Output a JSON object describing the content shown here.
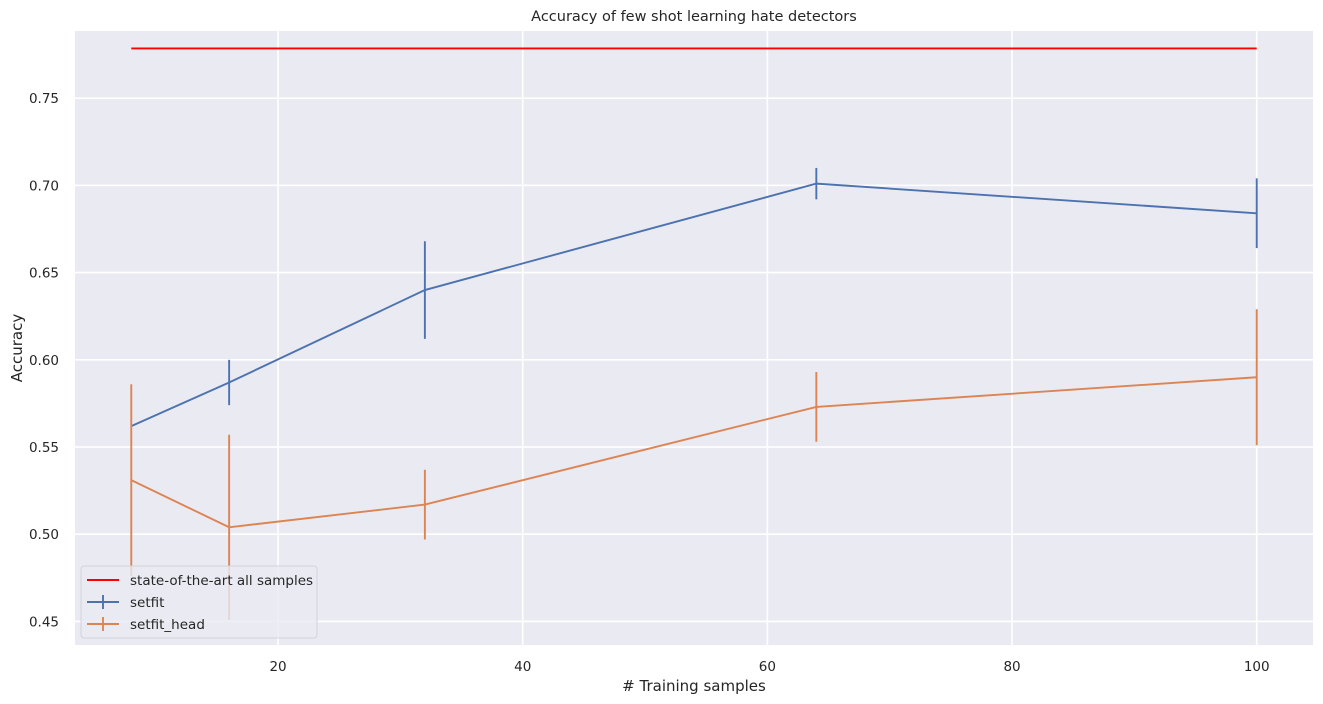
{
  "chart_data": {
    "type": "line",
    "title": "Accuracy of few shot learning hate detectors",
    "xlabel": "# Training samples",
    "ylabel": "Accuracy",
    "xlim": [
      3.4,
      104.6
    ],
    "ylim": [
      0.4365,
      0.7885
    ],
    "xticks": [
      20,
      40,
      60,
      80,
      100
    ],
    "yticks": [
      0.45,
      0.5,
      0.55,
      0.6,
      0.65,
      0.7,
      0.75
    ],
    "ytick_labels": [
      "0.45",
      "0.50",
      "0.55",
      "0.60",
      "0.65",
      "0.70",
      "0.75"
    ],
    "grid": true,
    "legend_position": "lower-left",
    "series": [
      {
        "name": "state-of-the-art all samples",
        "color": "#ff0000",
        "x": [
          8,
          100
        ],
        "y": [
          0.7785,
          0.7785
        ],
        "errors": null
      },
      {
        "name": "setfit",
        "color": "#4c72b0",
        "x": [
          8,
          16,
          32,
          64,
          100
        ],
        "y": [
          0.562,
          0.587,
          0.64,
          0.701,
          0.684
        ],
        "errors": [
          0.0,
          0.013,
          0.028,
          0.009,
          0.02
        ]
      },
      {
        "name": "setfit_head",
        "color": "#dd8452",
        "x": [
          8,
          16,
          32,
          64,
          100
        ],
        "y": [
          0.531,
          0.504,
          0.517,
          0.573,
          0.59
        ],
        "errors": [
          0.055,
          0.053,
          0.02,
          0.02,
          0.039
        ]
      }
    ]
  }
}
